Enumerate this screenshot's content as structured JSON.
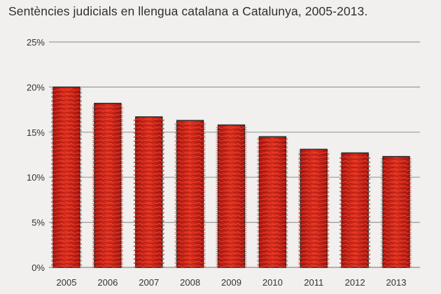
{
  "chart_data": {
    "type": "bar",
    "title": "Sentències judicials en llengua catalana a Catalunya, 2005-2013.",
    "categories": [
      "2005",
      "2006",
      "2007",
      "2008",
      "2009",
      "2010",
      "2011",
      "2012",
      "2013"
    ],
    "values": [
      20.0,
      18.2,
      16.7,
      16.3,
      15.8,
      14.5,
      13.1,
      12.7,
      12.3
    ],
    "unit": "%",
    "ylim": [
      0,
      25
    ],
    "yticks": [
      0,
      5,
      10,
      15,
      20,
      25
    ],
    "ytick_labels": [
      "0%",
      "5%",
      "10%",
      "15%",
      "20%",
      "25%"
    ],
    "xlabel": "",
    "ylabel": "",
    "grid": true,
    "legend": "none",
    "colors": {
      "bar_fill": "#d42a1c",
      "bar_dark": "#9e1210",
      "bar_outline": "#2a2a2a",
      "grid": "#9a9a9a",
      "background": "#f1f0ee"
    }
  }
}
